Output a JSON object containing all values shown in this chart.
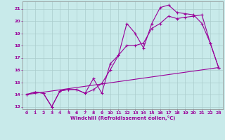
{
  "xlabel": "Windchill (Refroidissement éolien,°C)",
  "bg_color": "#c8eaea",
  "line_color": "#990099",
  "grid_color": "#aacccc",
  "xlim": [
    -0.5,
    23.5
  ],
  "ylim": [
    12.8,
    21.6
  ],
  "yticks": [
    13,
    14,
    15,
    16,
    17,
    18,
    19,
    20,
    21
  ],
  "xticks": [
    0,
    1,
    2,
    3,
    4,
    5,
    6,
    7,
    8,
    9,
    10,
    11,
    12,
    13,
    14,
    15,
    16,
    17,
    18,
    19,
    20,
    21,
    22,
    23
  ],
  "line1_x": [
    0,
    1,
    2,
    3,
    4,
    5,
    6,
    7,
    8,
    9,
    10,
    11,
    12,
    13,
    14,
    15,
    16,
    17,
    18,
    19,
    20,
    21,
    22,
    23
  ],
  "line1_y": [
    14.0,
    14.2,
    14.1,
    13.0,
    14.3,
    14.4,
    14.4,
    14.1,
    15.3,
    14.1,
    16.5,
    17.2,
    19.8,
    19.0,
    17.8,
    19.8,
    21.1,
    21.3,
    20.7,
    20.6,
    20.5,
    19.8,
    18.2,
    16.2
  ],
  "line2_x": [
    0,
    1,
    2,
    3,
    4,
    5,
    6,
    7,
    8,
    9,
    10,
    11,
    12,
    13,
    14,
    15,
    16,
    17,
    18,
    19,
    20,
    21,
    22,
    23
  ],
  "line2_y": [
    14.0,
    14.2,
    14.1,
    13.0,
    14.3,
    14.4,
    14.4,
    14.1,
    14.4,
    14.9,
    16.0,
    17.2,
    18.0,
    18.0,
    18.2,
    19.4,
    19.8,
    20.4,
    20.2,
    20.3,
    20.4,
    20.5,
    18.2,
    16.2
  ],
  "line3_x": [
    0,
    23
  ],
  "line3_y": [
    14.0,
    16.2
  ]
}
